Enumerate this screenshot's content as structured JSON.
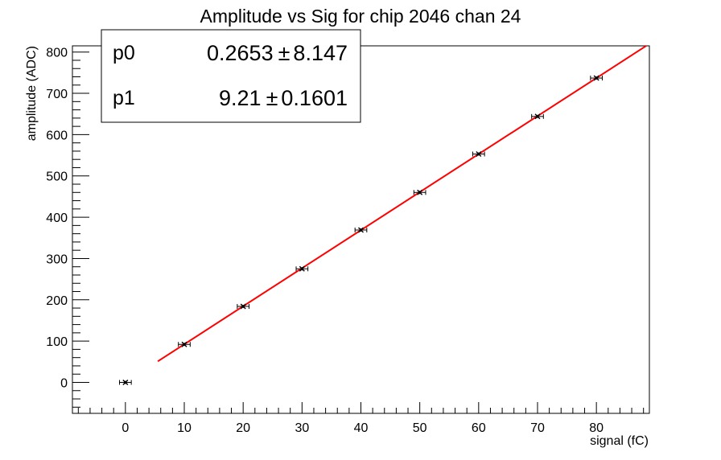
{
  "chart_data": {
    "type": "scatter",
    "title": "Amplitude vs Sig for chip 2046 chan 24",
    "xlabel": "signal (fC)",
    "ylabel": "amplitude (ADC)",
    "xlim": [
      -9,
      89
    ],
    "ylim": [
      -75,
      815
    ],
    "x_ticks": [
      0,
      10,
      20,
      30,
      40,
      50,
      60,
      70,
      80
    ],
    "y_ticks": [
      0,
      100,
      200,
      300,
      400,
      500,
      600,
      700,
      800
    ],
    "grid": false,
    "legend": "top-left",
    "series": [
      {
        "x": [
          0,
          10,
          20,
          30,
          40,
          50,
          60,
          70,
          80
        ],
        "y": [
          0,
          92,
          184,
          275,
          369,
          460,
          553,
          644,
          737
        ],
        "x_err": [
          1,
          1,
          1,
          1,
          1,
          1,
          1,
          1,
          1
        ],
        "y_err": [
          4,
          4,
          4,
          4,
          4,
          4,
          4,
          4,
          4
        ],
        "color": "#000000"
      }
    ],
    "fit": {
      "function": "pol1",
      "p0": 0.2653,
      "p1": 9.21,
      "x_range": [
        5.5,
        88.5
      ],
      "color": "#ff0000"
    },
    "stats_box": {
      "rows": [
        {
          "name": "p0",
          "value": "0.2653",
          "pm": "±",
          "error": "8.147"
        },
        {
          "name": "p1",
          "value": "9.21",
          "pm": "±",
          "error": "0.1601"
        }
      ]
    }
  }
}
